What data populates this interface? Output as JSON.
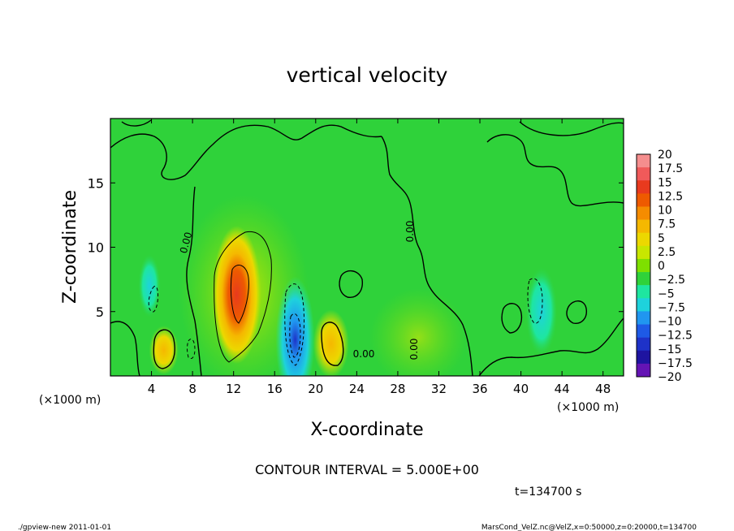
{
  "chart_data": {
    "type": "heatmap",
    "title": "vertical velocity",
    "xlabel": "X-coordinate",
    "ylabel": "Z-coordinate",
    "x_unit_left": "(×1000 m)",
    "x_unit_right": "(×1000 m)",
    "xlim": [
      0,
      50
    ],
    "ylim": [
      0,
      20
    ],
    "x_ticks": [
      4,
      8,
      12,
      16,
      20,
      24,
      28,
      32,
      36,
      40,
      44,
      48
    ],
    "y_ticks": [
      5,
      10,
      15
    ],
    "contour_interval_text": "CONTOUR INTERVAL = 5.000E+00",
    "time_text": "t=134700 s",
    "zero_contour_labels": [
      "0.00",
      "0.00",
      "0.00",
      "0.00"
    ],
    "colorbar": {
      "labels": [
        "20",
        "17.5",
        "15",
        "12.5",
        "10",
        "7.5",
        "5",
        "2.5",
        "0",
        "−2.5",
        "−5",
        "−7.5",
        "−10",
        "−12.5",
        "−15",
        "−17.5",
        "−20"
      ],
      "colors": [
        "#f58e8e",
        "#f05a5a",
        "#e83a1e",
        "#ee5a00",
        "#f58c00",
        "#f5b800",
        "#ecd800",
        "#c8e600",
        "#7ee000",
        "#2fd23a",
        "#1ee6a0",
        "#1ed2dc",
        "#2096f0",
        "#1e5ae6",
        "#1e32c8",
        "#1e14a0",
        "#6414b4"
      ]
    },
    "features": [
      {
        "kind": "updraft",
        "x": 12.3,
        "z": 6.3,
        "peak": 15
      },
      {
        "kind": "updraft",
        "x": 21.5,
        "z": 2.5,
        "peak": 8
      },
      {
        "kind": "updraft",
        "x": 5.2,
        "z": 2.0,
        "peak": 6
      },
      {
        "kind": "downdraft",
        "x": 18.0,
        "z": 2.8,
        "peak": -12
      },
      {
        "kind": "downdraft",
        "x": 42.0,
        "z": 5.0,
        "peak": -6
      },
      {
        "kind": "downdraft",
        "x": 3.8,
        "z": 7.0,
        "peak": -4
      }
    ]
  },
  "footer": {
    "left": "./gpview-new   2011-01-01",
    "right": "MarsCond_VelZ.nc@VelZ,x=0:50000,z=0:20000,t=134700"
  }
}
